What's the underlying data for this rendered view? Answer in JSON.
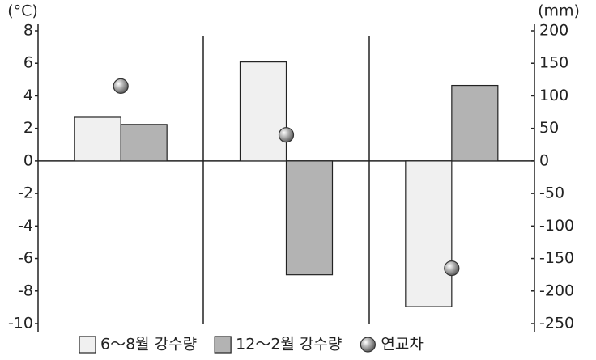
{
  "chart_data": {
    "type": "bar",
    "y_label": "(°C)",
    "y2_label": "(mm)",
    "categories": [
      null,
      null,
      null
    ],
    "series": [
      {
        "name": "6～8월 강수량",
        "type": "bar",
        "axis": "y2",
        "color": "#f0f0f0",
        "values": [
          67,
          152,
          -224
        ]
      },
      {
        "name": "12～2월 강수량",
        "type": "bar",
        "axis": "y2",
        "color": "#b3b3b3",
        "values": [
          56,
          -175,
          116
        ]
      },
      {
        "name": "연교차",
        "type": "scatter",
        "color": "#9a9a9a",
        "values": [
          4.6,
          1.6,
          -6.6
        ]
      }
    ],
    "ylim": [
      -10,
      8
    ],
    "yticks": [
      -10,
      -8,
      -6,
      -4,
      -2,
      0,
      2,
      4,
      6,
      8
    ],
    "y2lim": [
      -250,
      200
    ],
    "y2ticks": [
      -250,
      -200,
      -150,
      -100,
      -50,
      0,
      50,
      100,
      150,
      200
    ]
  }
}
